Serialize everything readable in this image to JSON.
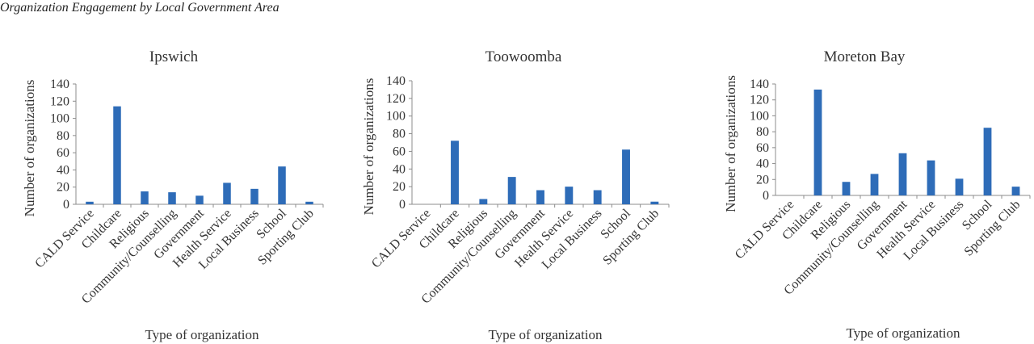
{
  "figure_title": "Organization Engagement by Local Government Area",
  "colors": {
    "bar": "#2e6cb8",
    "axis": "#8c8c8c"
  },
  "chart_data": [
    {
      "type": "bar",
      "title": "Ipswich",
      "xlabel": "Type of organization",
      "ylabel": "Number of organizations",
      "ylim": [
        0,
        140
      ],
      "yticks": [
        0,
        20,
        40,
        60,
        80,
        100,
        120,
        140
      ],
      "categories": [
        "CALD Service",
        "Childcare",
        "Religious",
        "Community/Counselling",
        "Government",
        "Health Service",
        "Local Business",
        "School",
        "Sporting Club"
      ],
      "values": [
        3,
        114,
        15,
        14,
        10,
        25,
        18,
        44,
        3
      ]
    },
    {
      "type": "bar",
      "title": "Toowoomba",
      "xlabel": "Type of organization",
      "ylabel": "Number of organizations",
      "ylim": [
        0,
        140
      ],
      "yticks": [
        0,
        20,
        40,
        60,
        80,
        100,
        120,
        140
      ],
      "categories": [
        "CALD Service",
        "Childcare",
        "Religious",
        "Community/Counselling",
        "Government",
        "Health Service",
        "Local Business",
        "School",
        "Sporting Club"
      ],
      "values": [
        0,
        72,
        6,
        31,
        16,
        20,
        16,
        62,
        3
      ]
    },
    {
      "type": "bar",
      "title": "Moreton Bay",
      "xlabel": "Type of organization",
      "ylabel": "Number of organizations",
      "ylim": [
        0,
        140
      ],
      "yticks": [
        0,
        20,
        40,
        60,
        80,
        100,
        120,
        140
      ],
      "categories": [
        "CALD Service",
        "Childcare",
        "Religious",
        "Community/Counselling",
        "Government",
        "Health Service",
        "Local Business",
        "School",
        "Sporting Club"
      ],
      "values": [
        0,
        133,
        17,
        27,
        53,
        44,
        21,
        85,
        11
      ]
    }
  ]
}
